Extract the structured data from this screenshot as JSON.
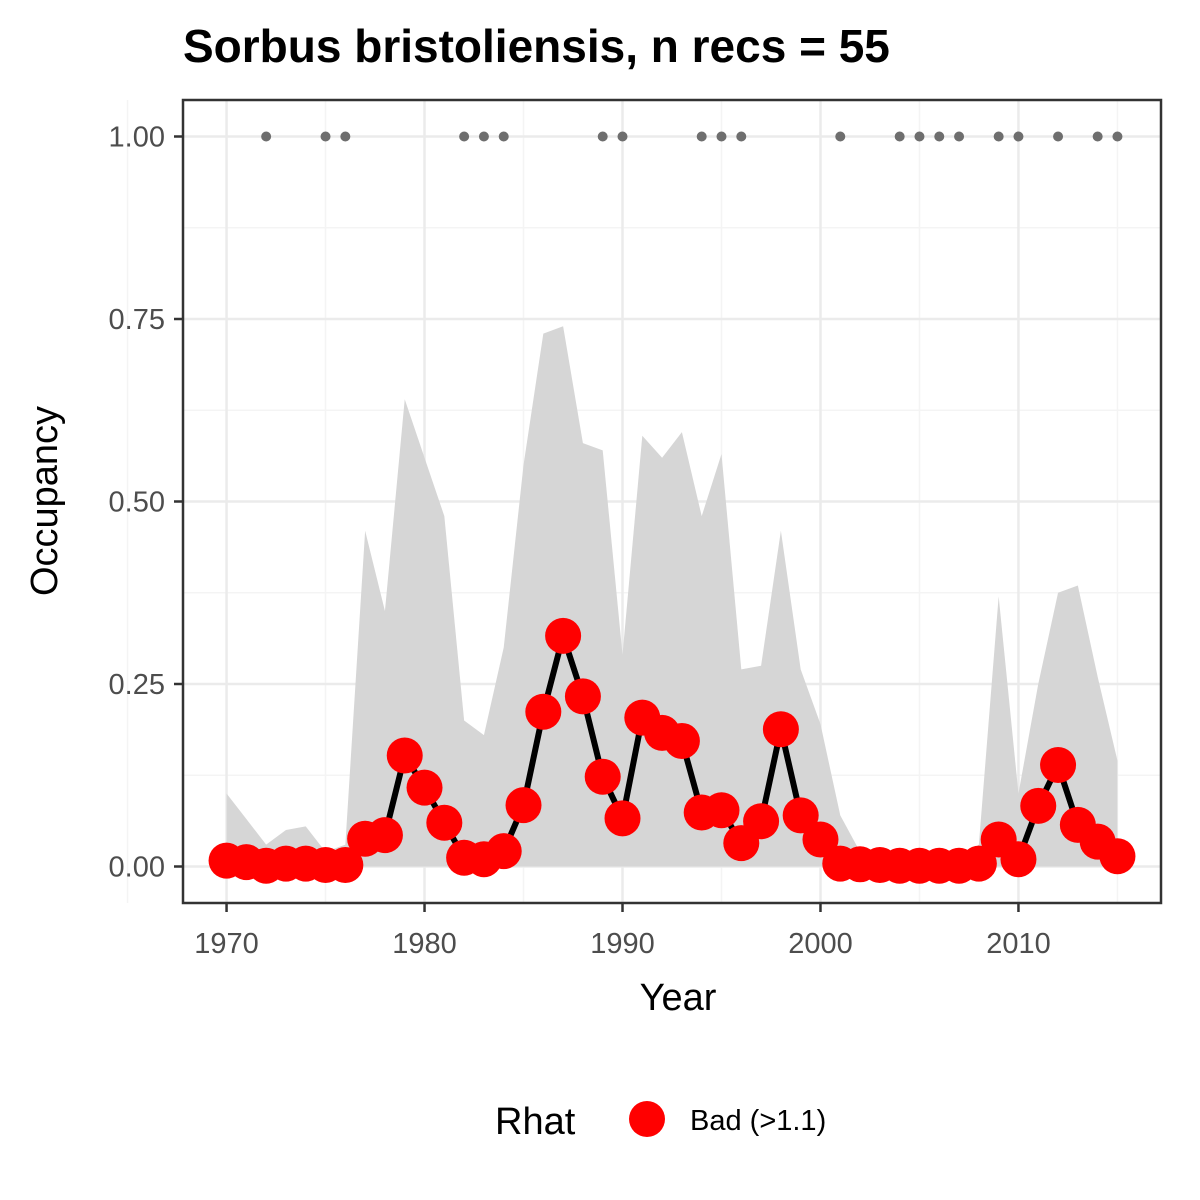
{
  "chart_data": {
    "type": "line",
    "title": "Sorbus bristoliensis, n recs = 55",
    "xlabel": "Year",
    "ylabel": "Occupancy",
    "xlim": [
      1967.8,
      2017.2
    ],
    "ylim": [
      -0.05,
      1.05
    ],
    "x_ticks": [
      1970,
      1980,
      1990,
      2000,
      2010
    ],
    "x_tick_labels": [
      "1970",
      "1980",
      "1990",
      "2000",
      "2010"
    ],
    "y_ticks": [
      0,
      0.25,
      0.5,
      0.75,
      1.0
    ],
    "y_tick_labels": [
      "0.00",
      "0.25",
      "0.50",
      "0.75",
      "1.00"
    ],
    "grid": true,
    "legend_position": "bottom",
    "legend": {
      "title": "Rhat",
      "items": [
        {
          "label": "Bad (>1.1)",
          "color": "#ff0000"
        }
      ]
    },
    "colors": {
      "ribbon": "#d6d6d6",
      "line": "#000000",
      "points": "#ff0000",
      "records": "#6e6e6e",
      "panel_border": "#333333",
      "grid_major": "#ebebeb",
      "grid_minor": "#f4f4f4"
    },
    "series": [
      {
        "years": [
          1970,
          1971,
          1972,
          1973,
          1974,
          1975,
          1976,
          1977,
          1978,
          1979,
          1980,
          1981,
          1982,
          1983,
          1984,
          1985,
          1986,
          1987,
          1988,
          1989,
          1990,
          1991,
          1992,
          1993,
          1994,
          1995,
          1996,
          1997,
          1998,
          1999,
          2000,
          2001,
          2002,
          2003,
          2004,
          2005,
          2006,
          2007,
          2008,
          2009,
          2010,
          2011,
          2012,
          2013,
          2014,
          2015
        ],
        "occupancy": [
          0.008,
          0.006,
          0.001,
          0.004,
          0.004,
          0.002,
          0.002,
          0.038,
          0.043,
          0.152,
          0.108,
          0.06,
          0.012,
          0.01,
          0.021,
          0.084,
          0.212,
          0.316,
          0.233,
          0.123,
          0.066,
          0.204,
          0.183,
          0.172,
          0.074,
          0.077,
          0.032,
          0.062,
          0.188,
          0.07,
          0.037,
          0.004,
          0.003,
          0.002,
          0.001,
          0.001,
          0.001,
          0.001,
          0.004,
          0.037,
          0.01,
          0.083,
          0.139,
          0.057,
          0.034,
          0.014
        ],
        "lower_ci": [
          0,
          0,
          0,
          0,
          0,
          0,
          0,
          0,
          0,
          0,
          0,
          0,
          0,
          0,
          0,
          0,
          0,
          0,
          0,
          0,
          0,
          0,
          0,
          0,
          0,
          0,
          0,
          0,
          0,
          0,
          0,
          0,
          0,
          0,
          0,
          0,
          0,
          0,
          0,
          0,
          0,
          0,
          0,
          0,
          0,
          0
        ],
        "upper_ci": [
          0.1,
          0.065,
          0.03,
          0.05,
          0.055,
          0.02,
          0.03,
          0.46,
          0.35,
          0.64,
          0.56,
          0.48,
          0.2,
          0.18,
          0.3,
          0.55,
          0.73,
          0.74,
          0.58,
          0.57,
          0.29,
          0.59,
          0.56,
          0.595,
          0.48,
          0.565,
          0.27,
          0.275,
          0.46,
          0.27,
          0.195,
          0.07,
          0.02,
          0.015,
          0.01,
          0.01,
          0.01,
          0.01,
          0.03,
          0.37,
          0.1,
          0.25,
          0.375,
          0.385,
          0.26,
          0.145
        ]
      }
    ],
    "records": {
      "y": 1.0,
      "years": [
        1972,
        1975,
        1976,
        1982,
        1983,
        1984,
        1989,
        1990,
        1994,
        1995,
        1996,
        2001,
        2004,
        2005,
        2006,
        2007,
        2009,
        2010,
        2012,
        2014,
        2015
      ]
    }
  }
}
